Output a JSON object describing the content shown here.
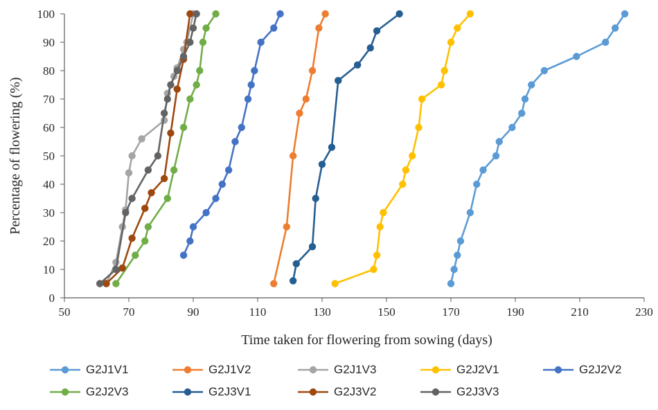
{
  "chart_data": {
    "type": "line",
    "title": "",
    "xlabel": "Time taken for flowering from sowing (days)",
    "ylabel": "Percentage of flowering (%)",
    "xlim": [
      50,
      230
    ],
    "ylim": [
      0,
      100
    ],
    "xticks": [
      "50",
      "70",
      "90",
      "110",
      "130",
      "150",
      "170",
      "190",
      "210",
      "230"
    ],
    "yticks": [
      "0",
      "10",
      "20",
      "30",
      "40",
      "50",
      "60",
      "70",
      "80",
      "90",
      "100"
    ],
    "grid": false,
    "legend_position": "bottom",
    "series": [
      {
        "name": "G2J1V1",
        "color": "#5B9BD5",
        "points": [
          [
            170,
            5
          ],
          [
            171,
            10
          ],
          [
            172,
            15
          ],
          [
            173,
            20
          ],
          [
            176,
            30
          ],
          [
            178,
            40
          ],
          [
            180,
            45
          ],
          [
            184,
            50
          ],
          [
            185,
            55
          ],
          [
            189,
            60
          ],
          [
            192,
            65
          ],
          [
            193,
            70
          ],
          [
            195,
            75
          ],
          [
            199,
            80
          ],
          [
            209,
            85
          ],
          [
            218,
            90
          ],
          [
            221,
            95
          ],
          [
            224,
            100
          ]
        ]
      },
      {
        "name": "G2J1V2",
        "color": "#ED7D31",
        "points": [
          [
            115,
            5
          ],
          [
            119,
            25
          ],
          [
            121,
            50
          ],
          [
            123,
            65
          ],
          [
            125,
            70
          ],
          [
            127,
            80
          ],
          [
            129,
            95
          ],
          [
            131,
            100
          ]
        ]
      },
      {
        "name": "G2J1V3",
        "color": "#A5A5A5",
        "points": [
          [
            63,
            5
          ],
          [
            66,
            12.5
          ],
          [
            68,
            25
          ],
          [
            69,
            31
          ],
          [
            70,
            44
          ],
          [
            71,
            50
          ],
          [
            74,
            56
          ],
          [
            81,
            62.5
          ],
          [
            82,
            72
          ],
          [
            84,
            78
          ],
          [
            85,
            81
          ],
          [
            87,
            87.5
          ],
          [
            88,
            90
          ],
          [
            90,
            100
          ]
        ]
      },
      {
        "name": "G2J2V1",
        "color": "#FFC000",
        "points": [
          [
            134,
            5
          ],
          [
            146,
            10
          ],
          [
            147,
            15
          ],
          [
            148,
            25
          ],
          [
            149,
            30
          ],
          [
            155,
            40
          ],
          [
            156,
            45
          ],
          [
            158,
            50
          ],
          [
            160,
            60
          ],
          [
            161,
            70
          ],
          [
            167,
            75
          ],
          [
            168,
            80
          ],
          [
            170,
            90
          ],
          [
            172,
            95
          ],
          [
            176,
            100
          ]
        ]
      },
      {
        "name": "G2J2V2",
        "color": "#4472C4",
        "points": [
          [
            87,
            15
          ],
          [
            89,
            20
          ],
          [
            90,
            25
          ],
          [
            94,
            30
          ],
          [
            97,
            35
          ],
          [
            99,
            40
          ],
          [
            101,
            45
          ],
          [
            103,
            55
          ],
          [
            105,
            60
          ],
          [
            107,
            70
          ],
          [
            108,
            75
          ],
          [
            109,
            80
          ],
          [
            111,
            90
          ],
          [
            115,
            95
          ],
          [
            117,
            100
          ]
        ]
      },
      {
        "name": "G2J2V3",
        "color": "#70AD47",
        "points": [
          [
            66,
            5
          ],
          [
            72,
            15
          ],
          [
            75,
            20
          ],
          [
            76,
            25
          ],
          [
            82,
            35
          ],
          [
            84,
            45
          ],
          [
            87,
            60
          ],
          [
            89,
            70
          ],
          [
            91,
            75
          ],
          [
            92,
            80
          ],
          [
            93,
            90
          ],
          [
            94,
            95
          ],
          [
            97,
            100
          ]
        ]
      },
      {
        "name": "G2J3V1",
        "color": "#255E91",
        "points": [
          [
            121,
            6
          ],
          [
            122,
            12
          ],
          [
            127,
            18
          ],
          [
            128,
            35
          ],
          [
            130,
            47
          ],
          [
            133,
            53
          ],
          [
            135,
            76.5
          ],
          [
            141,
            82
          ],
          [
            145,
            88
          ],
          [
            147,
            94
          ],
          [
            154,
            100
          ]
        ]
      },
      {
        "name": "G2J3V2",
        "color": "#9E480E",
        "points": [
          [
            63,
            5
          ],
          [
            68,
            10.5
          ],
          [
            71,
            21
          ],
          [
            75,
            31.5
          ],
          [
            77,
            37
          ],
          [
            81,
            42
          ],
          [
            83,
            58
          ],
          [
            85,
            73.5
          ],
          [
            87,
            84
          ],
          [
            89,
            100
          ]
        ]
      },
      {
        "name": "G2J3V3",
        "color": "#636363",
        "points": [
          [
            61,
            5
          ],
          [
            66,
            10
          ],
          [
            69,
            30
          ],
          [
            71,
            35
          ],
          [
            76,
            45
          ],
          [
            79,
            50
          ],
          [
            81,
            65
          ],
          [
            82,
            70
          ],
          [
            83,
            75
          ],
          [
            85,
            80
          ],
          [
            87,
            85
          ],
          [
            89,
            90
          ],
          [
            90,
            95
          ],
          [
            91,
            100
          ]
        ]
      }
    ]
  }
}
